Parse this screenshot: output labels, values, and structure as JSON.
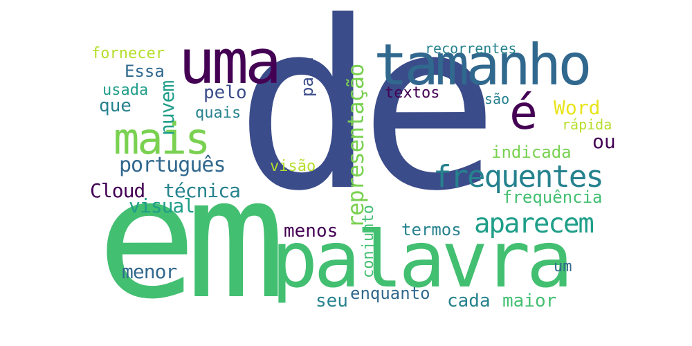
{
  "words": {
    "de": "de",
    "em": "em",
    "palavra": "palavra",
    "tamanho": "tamanho",
    "uma": "uma",
    "mais": "mais",
    "e_acute": "é",
    "frequentes": "frequentes",
    "aparecem": "aparecem",
    "representacao": "representação",
    "nuvem": "nuvem",
    "portugues": "português",
    "Cloud": "Cloud",
    "tecnica": "técnica",
    "visual": "visual",
    "fornecer": "fornecer",
    "Essa": "Essa",
    "usada": "usada",
    "que": "que",
    "pelo": "pelo",
    "quais": "quais",
    "para": "para",
    "textos": "textos",
    "sao": "são",
    "recorrentes": "recorrentes",
    "Word": "Word",
    "rapida": "rápida",
    "ou": "ou",
    "indicada": "indicada",
    "frequencia": "frequência",
    "visao": "visão",
    "menos": "menos",
    "conjunto": "conjunto",
    "termos": "termos",
    "menor": "menor",
    "um": "um",
    "seu": "seu",
    "enquanto": "enquanto",
    "cada": "cada",
    "maior": "maior"
  },
  "colors": {
    "dark_purple": "#440154",
    "indigo": "#3b4c8a",
    "blue": "#31688e",
    "teal": "#26828e",
    "green_teal": "#1f9e89",
    "green": "#43bf71",
    "lime": "#7ad151",
    "yellow_green": "#b5de2b",
    "yellow": "#e8e419"
  }
}
